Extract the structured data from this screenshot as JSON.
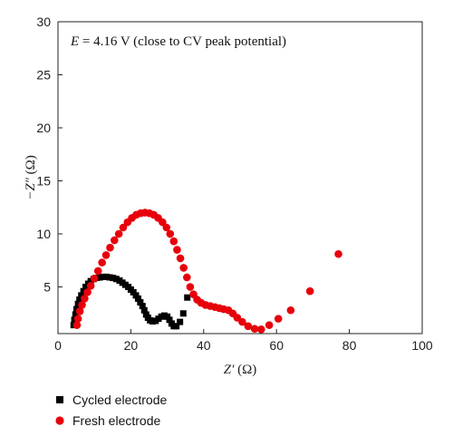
{
  "chart_data": {
    "type": "scatter",
    "annotation": {
      "var": "E",
      "eq": " = 4.16 V (close to CV peak potential)"
    },
    "xlabel": {
      "var": "Z′",
      "unit": " (Ω)"
    },
    "ylabel": {
      "var": "−Z″",
      "unit": " (Ω)"
    },
    "xlim": [
      0,
      100
    ],
    "ylim": [
      0.6,
      30
    ],
    "x_ticks": [
      "0",
      "20",
      "40",
      "60",
      "80",
      "100"
    ],
    "y_ticks": [
      "5",
      "10",
      "15",
      "20",
      "25",
      "30"
    ],
    "legend_position": "bottom-left, below plot",
    "grid": false,
    "series": [
      {
        "name": "Cycled electrode",
        "marker": "square",
        "color": "#000000",
        "points": [
          [
            4.3,
            1.4
          ],
          [
            4.5,
            1.9
          ],
          [
            4.8,
            2.4
          ],
          [
            5.1,
            2.9
          ],
          [
            5.5,
            3.4
          ],
          [
            5.9,
            3.8
          ],
          [
            6.4,
            4.2
          ],
          [
            7.0,
            4.6
          ],
          [
            7.6,
            5.0
          ],
          [
            8.3,
            5.3
          ],
          [
            9.0,
            5.55
          ],
          [
            9.8,
            5.75
          ],
          [
            10.6,
            5.85
          ],
          [
            11.5,
            5.9
          ],
          [
            12.4,
            5.95
          ],
          [
            13.3,
            5.95
          ],
          [
            14.2,
            5.9
          ],
          [
            15.1,
            5.85
          ],
          [
            16.0,
            5.75
          ],
          [
            16.9,
            5.6
          ],
          [
            17.7,
            5.4
          ],
          [
            18.5,
            5.2
          ],
          [
            19.3,
            5.0
          ],
          [
            20.0,
            4.75
          ],
          [
            20.7,
            4.5
          ],
          [
            21.4,
            4.2
          ],
          [
            22.0,
            3.9
          ],
          [
            22.6,
            3.55
          ],
          [
            23.2,
            3.2
          ],
          [
            23.7,
            2.8
          ],
          [
            24.2,
            2.4
          ],
          [
            24.7,
            2.1
          ],
          [
            25.3,
            1.85
          ],
          [
            26.0,
            1.75
          ],
          [
            26.8,
            1.8
          ],
          [
            27.6,
            2.0
          ],
          [
            28.4,
            2.2
          ],
          [
            29.2,
            2.3
          ],
          [
            30.0,
            2.2
          ],
          [
            30.6,
            1.9
          ],
          [
            31.2,
            1.55
          ],
          [
            31.8,
            1.3
          ],
          [
            32.5,
            1.3
          ],
          [
            33.5,
            1.7
          ],
          [
            34.4,
            2.5
          ],
          [
            35.5,
            4.0
          ]
        ]
      },
      {
        "name": "Fresh electrode",
        "marker": "circle",
        "color": "#e8000b",
        "points": [
          [
            5.2,
            1.4
          ],
          [
            5.5,
            2.0
          ],
          [
            6.0,
            2.7
          ],
          [
            6.6,
            3.3
          ],
          [
            7.3,
            3.9
          ],
          [
            8.1,
            4.5
          ],
          [
            9.0,
            5.1
          ],
          [
            10.0,
            5.8
          ],
          [
            11.0,
            6.5
          ],
          [
            12.1,
            7.3
          ],
          [
            13.2,
            8.0
          ],
          [
            14.3,
            8.7
          ],
          [
            15.5,
            9.4
          ],
          [
            16.7,
            10.0
          ],
          [
            17.9,
            10.6
          ],
          [
            19.1,
            11.1
          ],
          [
            20.3,
            11.5
          ],
          [
            21.5,
            11.8
          ],
          [
            22.7,
            11.95
          ],
          [
            23.9,
            12.0
          ],
          [
            25.1,
            11.95
          ],
          [
            26.3,
            11.8
          ],
          [
            27.5,
            11.5
          ],
          [
            28.7,
            11.1
          ],
          [
            29.8,
            10.6
          ],
          [
            30.8,
            10.0
          ],
          [
            31.8,
            9.3
          ],
          [
            32.7,
            8.5
          ],
          [
            33.6,
            7.7
          ],
          [
            34.5,
            6.8
          ],
          [
            35.4,
            5.9
          ],
          [
            36.3,
            5.0
          ],
          [
            37.2,
            4.3
          ],
          [
            38.2,
            3.8
          ],
          [
            39.3,
            3.5
          ],
          [
            40.5,
            3.3
          ],
          [
            41.8,
            3.2
          ],
          [
            43.1,
            3.1
          ],
          [
            44.3,
            3.0
          ],
          [
            45.5,
            2.9
          ],
          [
            46.8,
            2.8
          ],
          [
            48.0,
            2.5
          ],
          [
            49.2,
            2.1
          ],
          [
            50.6,
            1.7
          ],
          [
            52.2,
            1.3
          ],
          [
            54.0,
            1.05
          ],
          [
            55.8,
            1.0
          ],
          [
            58.0,
            1.4
          ],
          [
            60.5,
            2.0
          ],
          [
            63.9,
            2.8
          ],
          [
            69.2,
            4.6
          ],
          [
            77.0,
            8.1
          ]
        ]
      }
    ]
  }
}
